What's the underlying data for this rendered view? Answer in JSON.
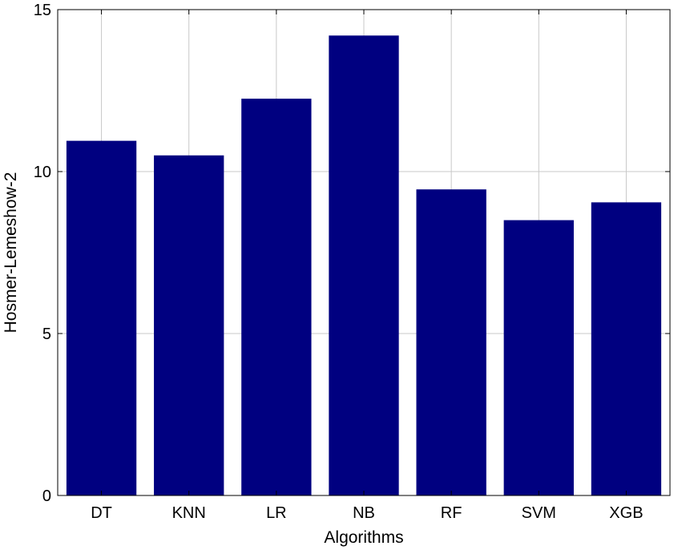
{
  "chart_data": {
    "type": "bar",
    "categories": [
      "DT",
      "KNN",
      "LR",
      "NB",
      "RF",
      "SVM",
      "XGB"
    ],
    "values": [
      10.95,
      10.5,
      12.25,
      14.2,
      9.45,
      8.5,
      9.05
    ],
    "xlabel": "Algorithms",
    "ylabel": "Hosmer-Lemeshow-2",
    "ylim": [
      0,
      15
    ],
    "yticks": [
      0,
      5,
      10,
      15
    ],
    "grid": true,
    "bar_color": "#000080"
  }
}
